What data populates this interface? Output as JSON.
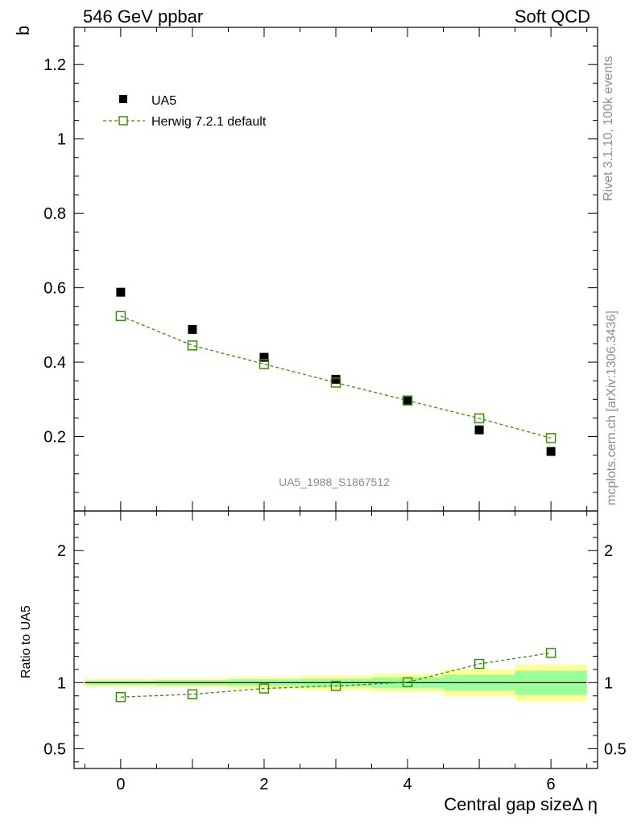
{
  "header": {
    "left_title": "546 GeV ppbar",
    "right_title": "Soft QCD"
  },
  "side_labels": {
    "rivet": "Rivet 3.1.10,  100k events",
    "mcplots": "mcplots.cern.ch [arXiv:1306.3436]"
  },
  "watermark": "UA5_1988_S1867512",
  "legend": {
    "data_label": "UA5",
    "mc_label": "Herwig 7.2.1 default"
  },
  "colors": {
    "data": "#000000",
    "mc": "#3a8f00",
    "band_inner": "#99ff99",
    "band_outer": "#ffff99",
    "side_text": "#8c8c8c"
  },
  "chart_data": [
    {
      "type": "scatter",
      "panel": "main",
      "ylabel": "b",
      "xlim": [
        -0.65,
        6.65
      ],
      "ylim": [
        0,
        1.3
      ],
      "yticks": [
        0.2,
        0.4,
        0.6,
        0.8,
        1,
        1.2
      ],
      "ytick_labels": [
        "0.2",
        "0.4",
        "0.6",
        "0.8",
        "1",
        "1.2"
      ],
      "series": [
        {
          "name": "UA5",
          "marker": "filled-square",
          "x": [
            0,
            1,
            2,
            3,
            4,
            5,
            6
          ],
          "y": [
            0.588,
            0.488,
            0.413,
            0.354,
            0.296,
            0.218,
            0.16
          ]
        },
        {
          "name": "Herwig 7.2.1 default",
          "marker": "open-square",
          "line": "dashed",
          "x": [
            0,
            1,
            2,
            3,
            4,
            5,
            6
          ],
          "y": [
            0.524,
            0.445,
            0.395,
            0.345,
            0.297,
            0.249,
            0.196
          ]
        }
      ]
    },
    {
      "type": "scatter",
      "panel": "ratio",
      "ylabel": "Ratio to UA5",
      "xlabel": "Central gap sizeΔ η",
      "xlim": [
        -0.65,
        6.65
      ],
      "ylim": [
        0.35,
        2.3
      ],
      "xticks": [
        0,
        2,
        4,
        6
      ],
      "xtick_labels": [
        "0",
        "2",
        "4",
        "6"
      ],
      "yticks": [
        0.5,
        1,
        2
      ],
      "ytick_labels": [
        "0.5",
        "1",
        "2"
      ],
      "reference_line": 1,
      "bands": {
        "x_edges": [
          [
            -0.5,
            0.5
          ],
          [
            0.5,
            1.5
          ],
          [
            1.5,
            2.5
          ],
          [
            2.5,
            3.5
          ],
          [
            3.5,
            4.5
          ],
          [
            4.5,
            5.5
          ],
          [
            5.5,
            6.5
          ]
        ],
        "inner": [
          [
            0.985,
            1.015
          ],
          [
            0.98,
            1.02
          ],
          [
            0.975,
            1.025
          ],
          [
            0.97,
            1.03
          ],
          [
            0.96,
            1.04
          ],
          [
            0.94,
            1.06
          ],
          [
            0.91,
            1.09
          ]
        ],
        "outer": [
          [
            0.97,
            1.03
          ],
          [
            0.965,
            1.035
          ],
          [
            0.955,
            1.045
          ],
          [
            0.945,
            1.055
          ],
          [
            0.93,
            1.07
          ],
          [
            0.9,
            1.1
          ],
          [
            0.86,
            1.14
          ]
        ]
      },
      "series": [
        {
          "name": "Herwig 7.2.1 default",
          "marker": "open-square",
          "line": "dashed",
          "x": [
            0,
            1,
            2,
            3,
            4,
            5,
            6
          ],
          "y": [
            0.891,
            0.912,
            0.956,
            0.975,
            1.003,
            1.142,
            1.225
          ]
        }
      ]
    }
  ]
}
